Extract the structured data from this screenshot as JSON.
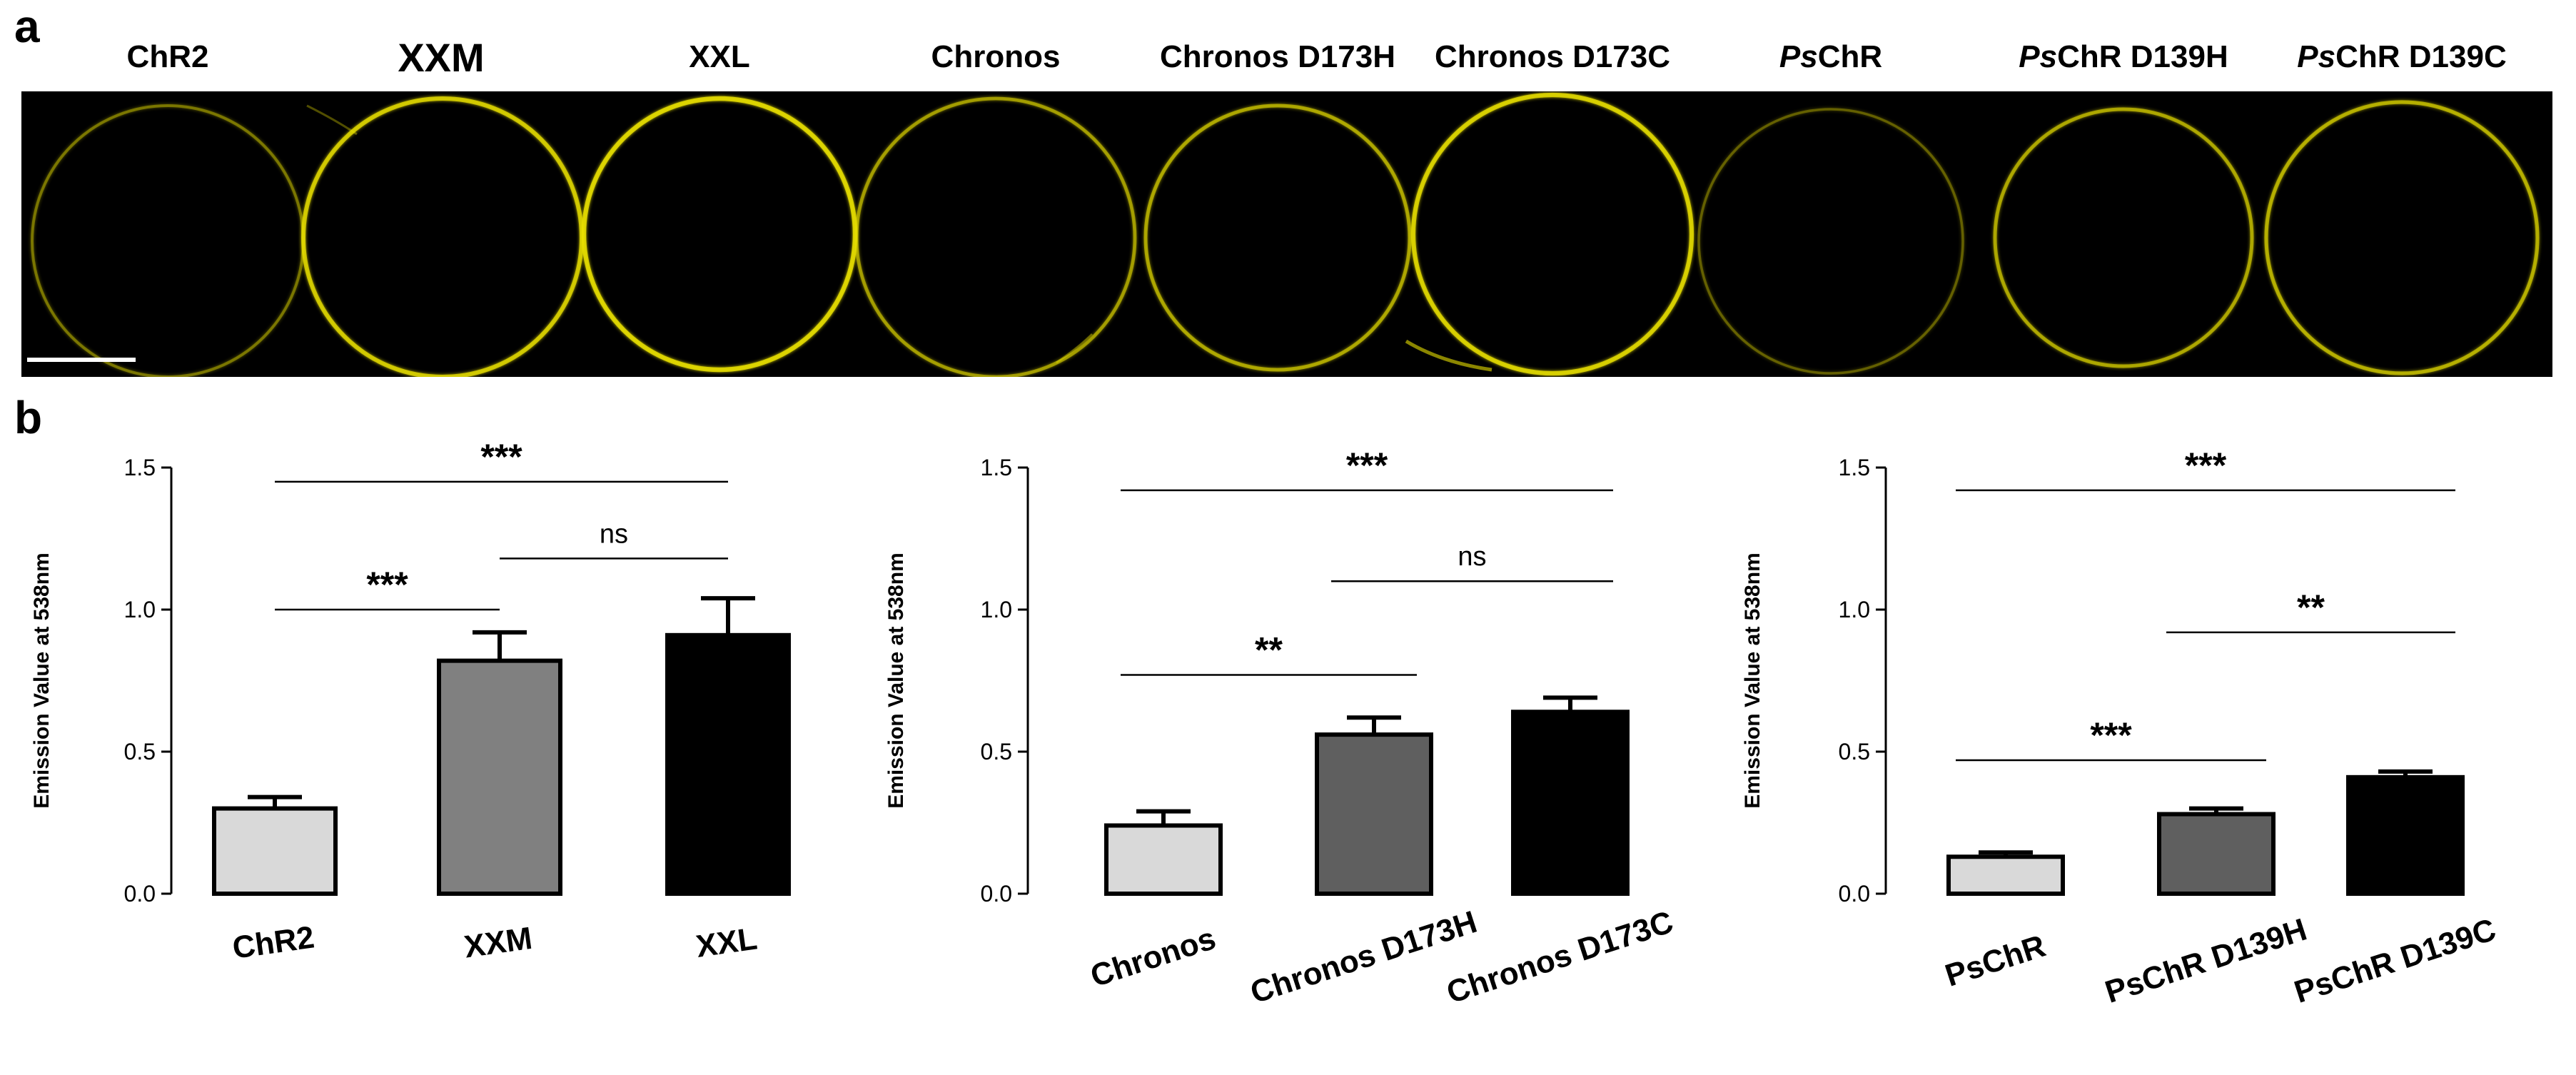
{
  "panel_a": {
    "letter": "a",
    "labels": [
      {
        "prefix": "",
        "rest": "ChR2"
      },
      {
        "prefix": "",
        "rest": "XXM"
      },
      {
        "prefix": "",
        "rest": "XXL"
      },
      {
        "prefix": "",
        "rest": "Chronos"
      },
      {
        "prefix": "",
        "rest": "Chronos D173H"
      },
      {
        "prefix": "",
        "rest": "Chronos D173C"
      },
      {
        "prefix": "Ps",
        "rest": "ChR"
      },
      {
        "prefix": "Ps",
        "rest": "ChR D139H"
      },
      {
        "prefix": "Ps",
        "rest": "ChR D139C"
      }
    ],
    "fluorescence_intensity": [
      0.25,
      0.75,
      0.85,
      0.45,
      0.5,
      0.8,
      0.15,
      0.5,
      0.55
    ],
    "colors": {
      "background": "#000000",
      "ring": "#e8e000"
    }
  },
  "panel_b": {
    "letter": "b"
  },
  "chart_data": [
    {
      "type": "bar",
      "title": "",
      "ylabel": "Emission Value at 538nm",
      "xlabel": "",
      "ylim": [
        0,
        1.5
      ],
      "yticks": [
        "0.0",
        "0.5",
        "1.0",
        "1.5"
      ],
      "categories": [
        "ChR2",
        "XXM",
        "XXL"
      ],
      "values": [
        0.3,
        0.82,
        0.91
      ],
      "errors": [
        0.04,
        0.1,
        0.13
      ],
      "bar_colors": [
        "#d9d9d9",
        "#808080",
        "#000000"
      ],
      "significance": [
        {
          "from": 0,
          "to": 2,
          "y": 1.45,
          "label": "***"
        },
        {
          "from": 1,
          "to": 2,
          "y": 1.18,
          "label": "ns"
        },
        {
          "from": 0,
          "to": 1,
          "y": 1.0,
          "label": "***"
        }
      ]
    },
    {
      "type": "bar",
      "title": "",
      "ylabel": "Emission Value at 538nm",
      "xlabel": "",
      "ylim": [
        0,
        1.5
      ],
      "yticks": [
        "0.0",
        "0.5",
        "1.0",
        "1.5"
      ],
      "categories": [
        "Chronos",
        "Chronos D173H",
        "Chronos D173C"
      ],
      "values": [
        0.24,
        0.56,
        0.64
      ],
      "errors": [
        0.05,
        0.06,
        0.05
      ],
      "bar_colors": [
        "#d9d9d9",
        "#5f5f5f",
        "#000000"
      ],
      "significance": [
        {
          "from": 0,
          "to": 2,
          "y": 1.42,
          "label": "***"
        },
        {
          "from": 1,
          "to": 2,
          "y": 1.1,
          "label": "ns"
        },
        {
          "from": 0,
          "to": 1,
          "y": 0.77,
          "label": "**"
        }
      ]
    },
    {
      "type": "bar",
      "title": "",
      "ylabel": "Emission Value at 538nm",
      "xlabel": "",
      "ylim": [
        0,
        1.5
      ],
      "yticks": [
        "0.0",
        "0.5",
        "1.0",
        "1.5"
      ],
      "categories": [
        "PsChR",
        "PsChR D139H",
        "PsChR D139C"
      ],
      "values": [
        0.13,
        0.28,
        0.41
      ],
      "errors": [
        0.015,
        0.02,
        0.02
      ],
      "bar_colors": [
        "#d9d9d9",
        "#5f5f5f",
        "#000000"
      ],
      "significance": [
        {
          "from": 0,
          "to": 2,
          "y": 1.42,
          "label": "***"
        },
        {
          "from": 1,
          "to": 2,
          "y": 0.92,
          "label": "**"
        },
        {
          "from": 0,
          "to": 1,
          "y": 0.47,
          "label": "***"
        }
      ]
    }
  ]
}
